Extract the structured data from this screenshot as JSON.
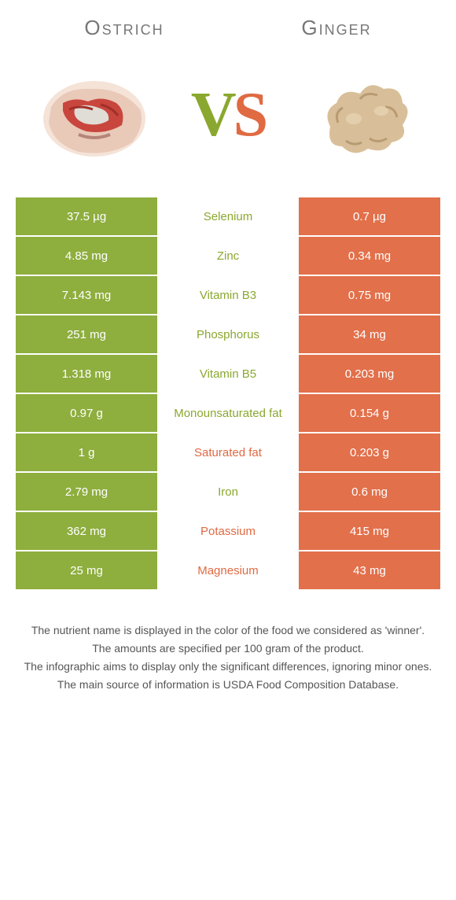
{
  "colors": {
    "left": "#8eae3e",
    "right": "#e2704b",
    "winner_left_text": "#8aa82f",
    "winner_right_text": "#e06a42",
    "background": "#ffffff"
  },
  "header": {
    "left_title": "Ostrich",
    "right_title": "Ginger",
    "vs_v": "V",
    "vs_s": "S"
  },
  "nutrients": [
    {
      "name": "Selenium",
      "left": "37.5 µg",
      "right": "0.7 µg",
      "winner": "left"
    },
    {
      "name": "Zinc",
      "left": "4.85 mg",
      "right": "0.34 mg",
      "winner": "left"
    },
    {
      "name": "Vitamin B3",
      "left": "7.143 mg",
      "right": "0.75 mg",
      "winner": "left"
    },
    {
      "name": "Phosphorus",
      "left": "251 mg",
      "right": "34 mg",
      "winner": "left"
    },
    {
      "name": "Vitamin B5",
      "left": "1.318 mg",
      "right": "0.203 mg",
      "winner": "left"
    },
    {
      "name": "Monounsaturated fat",
      "left": "0.97 g",
      "right": "0.154 g",
      "winner": "left"
    },
    {
      "name": "Saturated fat",
      "left": "1 g",
      "right": "0.203 g",
      "winner": "right"
    },
    {
      "name": "Iron",
      "left": "2.79 mg",
      "right": "0.6 mg",
      "winner": "left"
    },
    {
      "name": "Potassium",
      "left": "362 mg",
      "right": "415 mg",
      "winner": "right"
    },
    {
      "name": "Magnesium",
      "left": "25 mg",
      "right": "43 mg",
      "winner": "right"
    }
  ],
  "footer": {
    "line1": "The nutrient name is displayed in the color of the food we considered as 'winner'.",
    "line2": "The amounts are specified per 100 gram of the product.",
    "line3": "The infographic aims to display only the significant differences, ignoring minor ones.",
    "line4": "The main source of information is USDA Food Composition Database."
  }
}
